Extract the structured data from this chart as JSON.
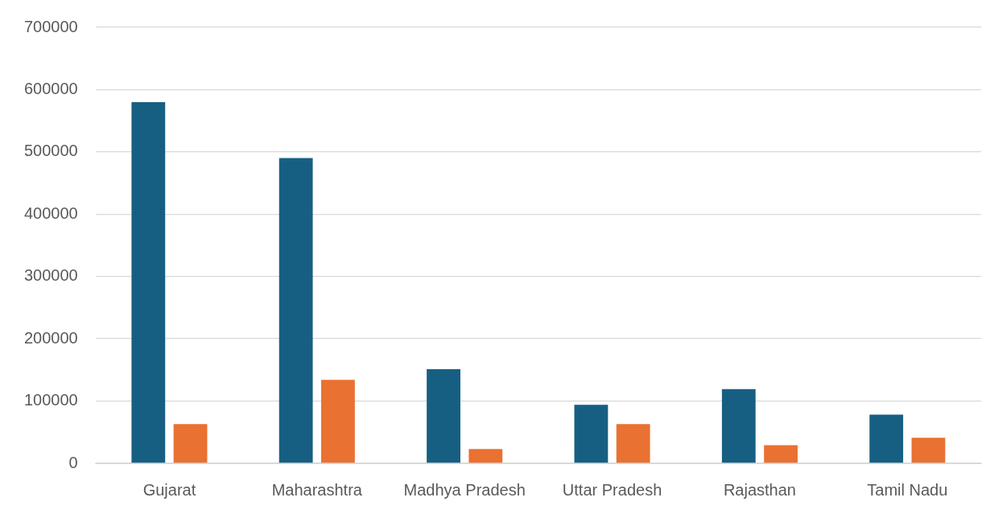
{
  "chart_data": {
    "type": "bar",
    "categories": [
      "Gujarat",
      "Maharashtra",
      "Madhya Pradesh",
      "Uttar Pradesh",
      "Rajasthan",
      "Tamil Nadu"
    ],
    "series": [
      {
        "color": "#175f82",
        "values": [
          580000,
          490000,
          151000,
          94000,
          119000,
          78000
        ]
      },
      {
        "color": "#e97132",
        "values": [
          63000,
          134000,
          23000,
          63000,
          29000,
          41000
        ]
      }
    ],
    "ylim": [
      0,
      700000
    ],
    "yticks": [
      0,
      100000,
      200000,
      300000,
      400000,
      500000,
      600000,
      700000
    ],
    "grid": "y",
    "legend": false
  }
}
